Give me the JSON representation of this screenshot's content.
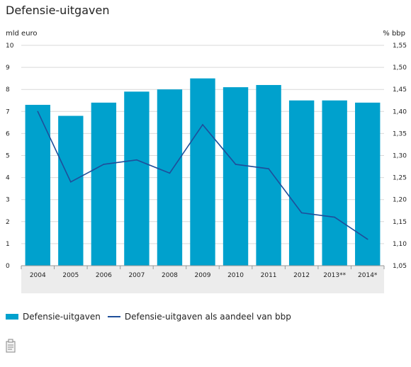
{
  "title": "Defensie-uitgaven",
  "colors": {
    "bar": "#00a1cd",
    "line": "#1f4e9a",
    "grid": "#d9d9d9",
    "band": "#ececec"
  },
  "chart_data": {
    "type": "bar",
    "categories": [
      "2004",
      "2005",
      "2006",
      "2007",
      "2008",
      "2009",
      "2010",
      "2011",
      "2012",
      "2013**",
      "2014*"
    ],
    "series": [
      {
        "name": "Defensie-uitgaven",
        "type": "bar",
        "axis": "left",
        "values": [
          7.3,
          6.8,
          7.4,
          7.9,
          8.0,
          8.5,
          8.1,
          8.2,
          7.5,
          7.5,
          7.4
        ]
      },
      {
        "name": "Defensie-uitgaven als aandeel van bbp",
        "type": "line",
        "axis": "right",
        "values": [
          1.4,
          1.24,
          1.28,
          1.29,
          1.26,
          1.37,
          1.28,
          1.27,
          1.17,
          1.16,
          1.11
        ]
      }
    ],
    "ylabel": "mld euro",
    "y2label": "% bbp",
    "ylim": [
      0,
      10
    ],
    "y2lim": [
      1.05,
      1.55
    ],
    "yticks": [
      "0",
      "1",
      "2",
      "3",
      "4",
      "5",
      "6",
      "7",
      "8",
      "9",
      "10"
    ],
    "y2ticks": [
      "1,05",
      "1,10",
      "1,15",
      "1,20",
      "1,25",
      "1,30",
      "1,35",
      "1,40",
      "1,45",
      "1,50",
      "1,55"
    ],
    "grid": true,
    "legend_position": "bottom-left"
  },
  "legend": {
    "bar_label": "Defensie-uitgaven",
    "line_label": "Defensie-uitgaven als aandeel van bbp"
  },
  "source_icon": "document-icon"
}
